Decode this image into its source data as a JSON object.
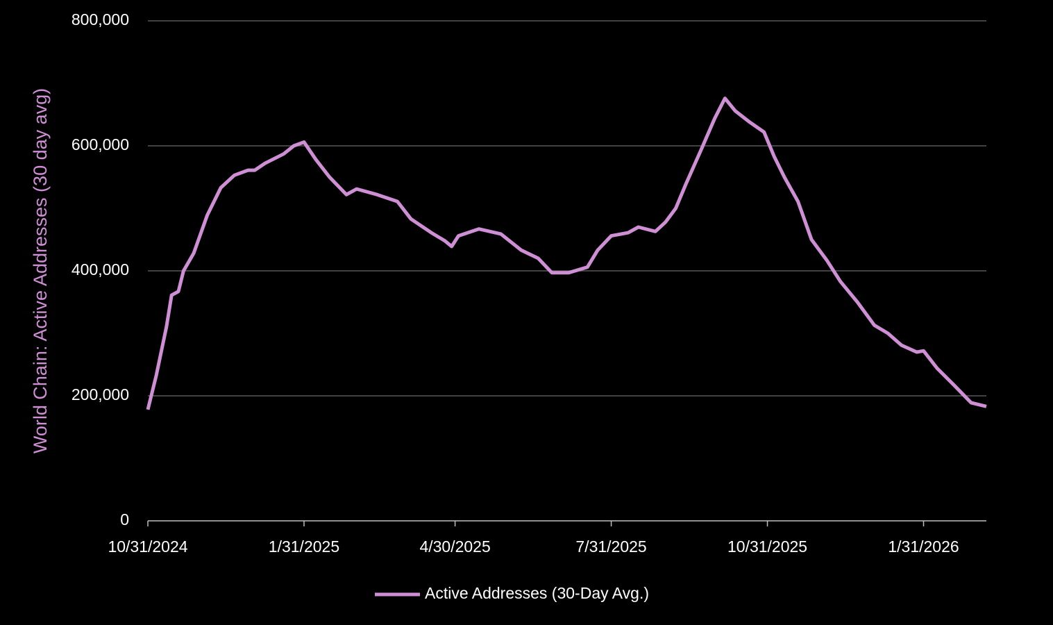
{
  "chart_data": {
    "type": "line",
    "y_label": "World Chain:  Active Addresses (30 day avg)",
    "x": [
      "10/31/2024",
      "11/5/2024",
      "11/11/2024",
      "11/14/2024",
      "11/18/2024",
      "11/21/2024",
      "11/27/2024",
      "12/5/2024",
      "12/13/2024",
      "12/21/2024",
      "12/29/2024",
      "1/2/2025",
      "1/8/2025",
      "1/19/2025",
      "1/25/2025",
      "1/31/2025",
      "2/7/2025",
      "2/15/2025",
      "2/25/2025",
      "3/3/2025",
      "3/15/2025",
      "3/27/2025",
      "4/4/2025",
      "4/16/2025",
      "4/24/2025",
      "4/28/2025",
      "5/2/2025",
      "5/14/2025",
      "5/27/2025",
      "6/8/2025",
      "6/18/2025",
      "6/26/2025",
      "7/6/2025",
      "7/17/2025",
      "7/23/2025",
      "7/31/2025",
      "8/10/2025",
      "8/16/2025",
      "8/26/2025",
      "9/1/2025",
      "9/7/2025",
      "9/13/2025",
      "9/22/2025",
      "9/30/2025",
      "10/6/2025",
      "10/12/2025",
      "10/20/2025",
      "10/29/2025",
      "11/4/2025",
      "11/10/2025",
      "11/18/2025",
      "11/26/2025",
      "12/5/2025",
      "12/13/2025",
      "12/23/2025",
      "1/2/2026",
      "1/10/2026",
      "1/18/2026",
      "1/27/2026",
      "1/31/2026",
      "2/8/2026",
      "2/18/2026",
      "2/28/2026",
      "3/9/2026"
    ],
    "series": [
      {
        "name": "Active Addresses (30-Day Avg.)",
        "color": "#cf8fd5",
        "values": [
          178000,
          233000,
          311000,
          361000,
          367000,
          400000,
          428000,
          489000,
          533000,
          553000,
          561000,
          561000,
          572000,
          587000,
          600000,
          606000,
          578000,
          550000,
          522000,
          531000,
          522000,
          511000,
          483000,
          461000,
          448000,
          439000,
          456000,
          467000,
          459000,
          433000,
          420000,
          397000,
          397000,
          406000,
          433000,
          456000,
          461000,
          470000,
          463000,
          478000,
          500000,
          539000,
          594000,
          644000,
          676000,
          656000,
          639000,
          622000,
          583000,
          550000,
          511000,
          450000,
          417000,
          383000,
          350000,
          313000,
          300000,
          281000,
          270000,
          272000,
          244000,
          217000,
          189000,
          183000
        ]
      }
    ],
    "xlim": [
      "10/31/2024",
      "3/9/2026"
    ],
    "xticks": [
      "10/31/2024",
      "1/31/2025",
      "4/30/2025",
      "7/31/2025",
      "10/31/2025",
      "1/31/2026"
    ],
    "ylim": [
      0,
      800000
    ],
    "yticks": [
      0,
      {
        "value": 200000,
        "label": "200,000"
      },
      {
        "value": 400000,
        "label": "400,000"
      },
      {
        "value": 600000,
        "label": "600,000"
      },
      {
        "value": 800000,
        "label": "800,000"
      }
    ],
    "grid": true,
    "legend": "bottom"
  }
}
